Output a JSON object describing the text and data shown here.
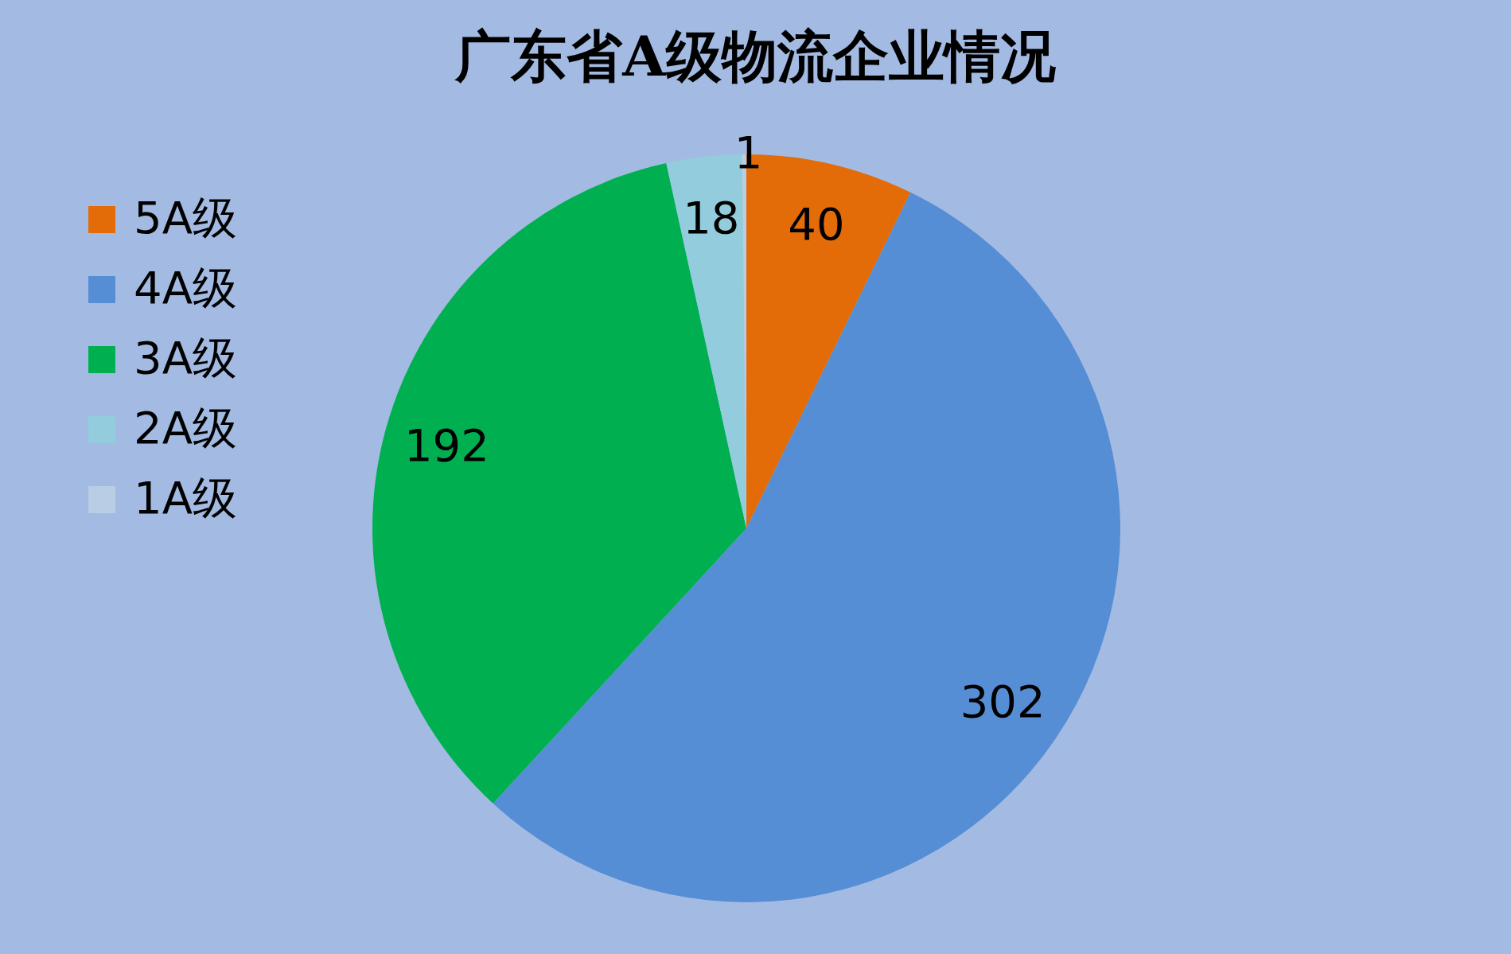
{
  "chart_data": {
    "type": "pie",
    "title": "广东省A级物流企业情况",
    "categories": [
      "5A级",
      "4A级",
      "3A级",
      "2A级",
      "1A级"
    ],
    "values": [
      40,
      302,
      192,
      18,
      1
    ],
    "colors": [
      "#e36c09",
      "#558ed5",
      "#00b050",
      "#93cddd",
      "#b9cde5"
    ],
    "data_labels": true,
    "legend": "left"
  }
}
